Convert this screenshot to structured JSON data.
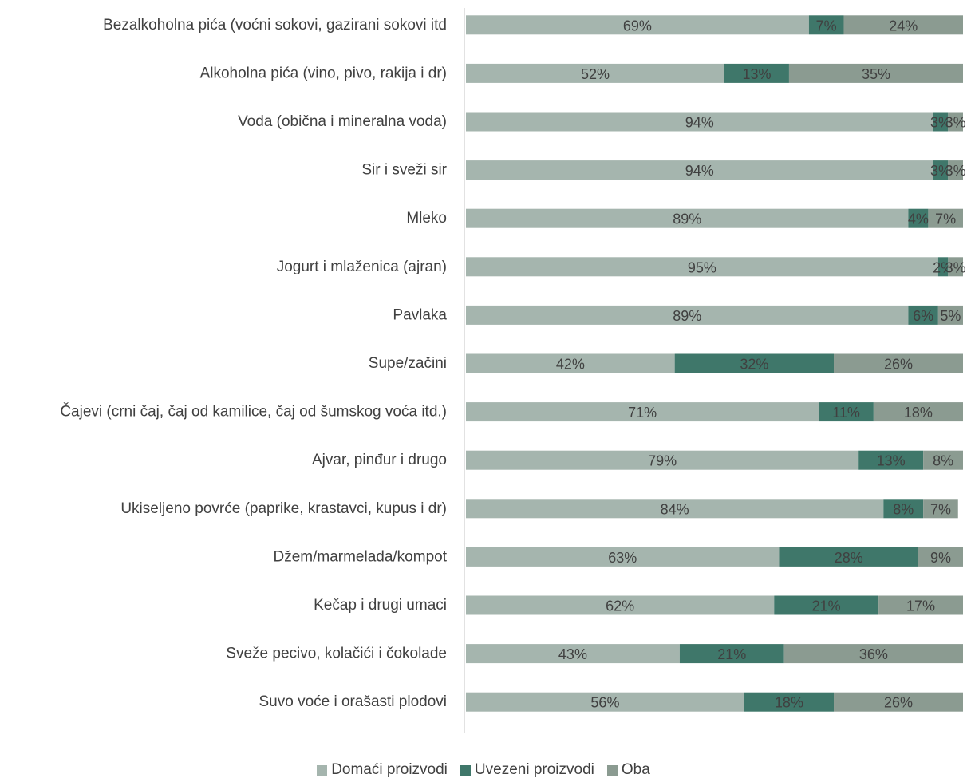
{
  "chart_data": {
    "type": "bar",
    "orientation": "horizontal",
    "stacked": true,
    "percent": true,
    "title": "",
    "xlabel": "",
    "ylabel": "",
    "xlim": [
      0,
      100
    ],
    "grid": false,
    "legend_position": "bottom",
    "categories": [
      "Bezalkoholna pića (voćni sokovi, gazirani sokovi itd",
      "Alkoholna pića (vino, pivo, rakija i dr)",
      "Voda (obična i mineralna voda)",
      "Sir i sveži sir",
      "Mleko",
      "Jogurt i mlaženica (ajran)",
      "Pavlaka",
      "Supe/začini",
      "Čajevi (crni čaj, čaj od kamilice, čaj od šumskog voća itd.)",
      "Ajvar, pinđur i drugo",
      "Ukiseljeno povrće (paprike, krastavci, kupus i dr)",
      "Džem/marmelada/kompot",
      "Kečap i drugi umaci",
      "Sveže pecivo, kolačići i čokolade",
      "Suvo voće i orašasti plodovi"
    ],
    "series": [
      {
        "name": "Domaći proizvodi",
        "color": "#a5b5ae",
        "values": [
          69,
          52,
          94,
          94,
          89,
          95,
          89,
          42,
          71,
          79,
          84,
          63,
          62,
          43,
          56
        ]
      },
      {
        "name": "Uvezeni proizvodi",
        "color": "#3f776a",
        "values": [
          7,
          13,
          3,
          3,
          4,
          2,
          6,
          32,
          11,
          13,
          8,
          28,
          21,
          21,
          18
        ]
      },
      {
        "name": "Oba",
        "color": "#8b9b91",
        "values": [
          24,
          35,
          3,
          3,
          7,
          3,
          5,
          26,
          18,
          8,
          7,
          9,
          17,
          36,
          26
        ]
      }
    ],
    "value_suffix": "%"
  }
}
